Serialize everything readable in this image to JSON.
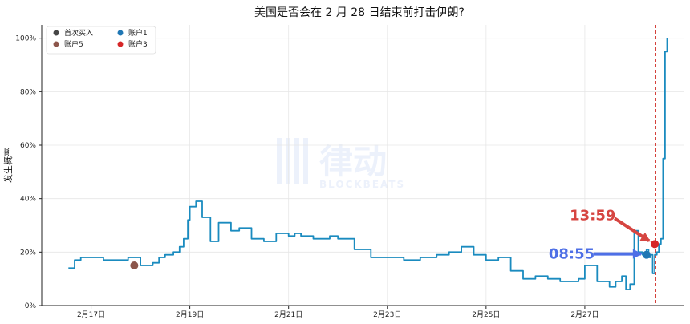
{
  "chart_data": {
    "type": "line",
    "title": "美国是否会在 2 月 28 日结束前打击伊朗?",
    "ylabel": "发生概率",
    "xlabel": "",
    "ylim": [
      0,
      1.05
    ],
    "xlim": [
      "2026-02-16T00:00",
      "2026-03-01T00:00"
    ],
    "grid": true,
    "legend_position": "top-left",
    "y_ticks": [
      0,
      0.2,
      0.4,
      0.6,
      0.8,
      1.0
    ],
    "y_tick_labels": [
      "0%",
      "20%",
      "40%",
      "60%",
      "80%",
      "100%"
    ],
    "x_ticks": [
      "2026-02-17T00:00",
      "2026-02-19T00:00",
      "2026-02-21T00:00",
      "2026-02-23T00:00",
      "2026-02-25T00:00",
      "2026-02-27T00:00"
    ],
    "x_tick_labels": [
      "2月17日",
      "2月19日",
      "2月21日",
      "2月23日",
      "2月25日",
      "2月27日"
    ],
    "series": [
      {
        "color": "#1a8bbf",
        "x": [
          "2026-02-16T13:00",
          "2026-02-16T16:00",
          "2026-02-16T19:00",
          "2026-02-17T00:00",
          "2026-02-17T06:00",
          "2026-02-17T12:00",
          "2026-02-17T18:00",
          "2026-02-18T00:00",
          "2026-02-18T06:00",
          "2026-02-18T09:00",
          "2026-02-18T12:00",
          "2026-02-18T16:00",
          "2026-02-18T19:00",
          "2026-02-18T21:00",
          "2026-02-18T23:00",
          "2026-02-19T00:00",
          "2026-02-19T03:00",
          "2026-02-19T06:00",
          "2026-02-19T10:00",
          "2026-02-19T14:00",
          "2026-02-19T20:00",
          "2026-02-20T00:00",
          "2026-02-20T06:00",
          "2026-02-20T12:00",
          "2026-02-20T18:00",
          "2026-02-21T00:00",
          "2026-02-21T03:00",
          "2026-02-21T06:00",
          "2026-02-21T12:00",
          "2026-02-21T20:00",
          "2026-02-22T00:00",
          "2026-02-22T08:00",
          "2026-02-22T16:00",
          "2026-02-23T00:00",
          "2026-02-23T08:00",
          "2026-02-23T16:00",
          "2026-02-24T00:00",
          "2026-02-24T06:00",
          "2026-02-24T12:00",
          "2026-02-24T18:00",
          "2026-02-25T00:00",
          "2026-02-25T06:00",
          "2026-02-25T12:00",
          "2026-02-25T18:00",
          "2026-02-26T00:00",
          "2026-02-26T06:00",
          "2026-02-26T12:00",
          "2026-02-26T18:00",
          "2026-02-26T21:00",
          "2026-02-27T00:00",
          "2026-02-27T06:00",
          "2026-02-27T12:00",
          "2026-02-27T15:00",
          "2026-02-27T18:00",
          "2026-02-27T20:00",
          "2026-02-27T22:00",
          "2026-02-28T00:00",
          "2026-02-28T02:00",
          "2026-02-28T04:00",
          "2026-02-28T06:00",
          "2026-02-28T07:00",
          "2026-02-28T08:00",
          "2026-02-28T09:00",
          "2026-02-28T10:00",
          "2026-02-28T11:00",
          "2026-02-28T12:00",
          "2026-02-28T13:00",
          "2026-02-28T14:00",
          "2026-02-28T15:00",
          "2026-02-28T16:00"
        ],
        "values": [
          0.14,
          0.17,
          0.18,
          0.18,
          0.17,
          0.17,
          0.18,
          0.15,
          0.16,
          0.18,
          0.19,
          0.2,
          0.22,
          0.25,
          0.32,
          0.37,
          0.39,
          0.33,
          0.24,
          0.31,
          0.28,
          0.29,
          0.25,
          0.24,
          0.27,
          0.26,
          0.27,
          0.26,
          0.25,
          0.26,
          0.25,
          0.21,
          0.18,
          0.18,
          0.17,
          0.18,
          0.19,
          0.2,
          0.22,
          0.19,
          0.17,
          0.18,
          0.13,
          0.1,
          0.11,
          0.1,
          0.09,
          0.09,
          0.1,
          0.15,
          0.09,
          0.07,
          0.09,
          0.11,
          0.06,
          0.08,
          0.28,
          0.2,
          0.19,
          0.21,
          0.18,
          0.19,
          0.12,
          0.19,
          0.2,
          0.23,
          0.25,
          0.55,
          0.95,
          1.0
        ]
      }
    ],
    "vline": {
      "x": "2026-02-28T10:30",
      "color": "#d43f3a",
      "style": "dashed"
    },
    "markers": [
      {
        "legend": "首次买入",
        "color": "#454545",
        "show_on_plot": false
      },
      {
        "legend": "账户1",
        "color": "#1f77b4",
        "x": "2026-02-28T06:00",
        "y": 0.19,
        "annotation": "08:55",
        "annotation_color": "#4e6fe6"
      },
      {
        "legend": "账户5",
        "color": "#8c564b",
        "x": "2026-02-17T21:00",
        "y": 0.15
      },
      {
        "legend": "账户3",
        "color": "#d62728",
        "x": "2026-02-28T10:00",
        "y": 0.23,
        "annotation": "13:59",
        "annotation_color": "#d64541"
      }
    ],
    "legend": {
      "columns": 2
    }
  },
  "watermark": {
    "brand_cn": "律动",
    "brand_en": "BLOCKBEATS"
  }
}
